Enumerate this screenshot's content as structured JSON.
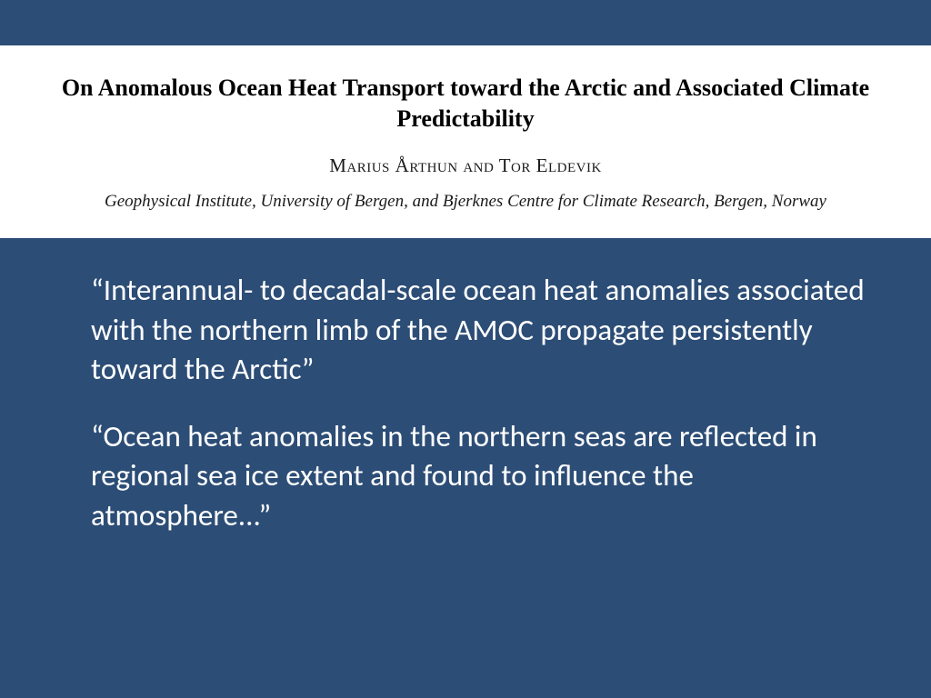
{
  "colors": {
    "slide_bg": "#2c4d76",
    "header_bg": "#ffffff",
    "title_color": "#000000",
    "author_color": "#1a1a1a",
    "quote_color": "#ffffff"
  },
  "typography": {
    "title_family": "Times New Roman",
    "title_size_pt": 20,
    "title_weight": "bold",
    "author_size_pt": 16,
    "affiliation_size_pt": 14,
    "quote_family": "Calibri",
    "quote_size_pt": 25
  },
  "header": {
    "title": "On Anomalous Ocean Heat Transport toward the Arctic and Associated Climate Predictability",
    "authors_html": "Marius Årthun and Tor Eldevik",
    "affiliation": "Geophysical Institute, University of Bergen, and Bjerknes Centre for Climate Research, Bergen, Norway"
  },
  "quotes": [
    "“Interannual- to decadal-scale ocean heat anomalies associated with the northern limb of the AMOC propagate persistently toward the Arctic”",
    "“Ocean heat anomalies in the northern seas are reflected in regional sea ice extent and found to influence the atmosphere...”"
  ]
}
